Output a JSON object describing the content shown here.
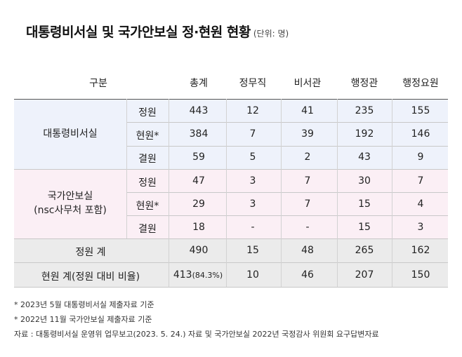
{
  "title": "대통령비서실 및 국가안보실 정·현원 현황",
  "unit": "(단위: 명)",
  "headers": [
    "구분",
    "총계",
    "정무직",
    "비서관",
    "행정관",
    "행정요원"
  ],
  "groups": [
    {
      "name": "대통령비서실",
      "name_line2": "",
      "rows": [
        {
          "label": "정원",
          "values": [
            "443",
            "12",
            "41",
            "235",
            "155"
          ]
        },
        {
          "label": "현원*",
          "values": [
            "384",
            "7",
            "39",
            "192",
            "146"
          ]
        },
        {
          "label": "결원",
          "values": [
            "59",
            "5",
            "2",
            "43",
            "9"
          ]
        }
      ]
    },
    {
      "name": "국가안보실",
      "name_line2": "(nsc사무처 포함)",
      "rows": [
        {
          "label": "정원",
          "values": [
            "47",
            "3",
            "7",
            "30",
            "7"
          ]
        },
        {
          "label": "현원*",
          "values": [
            "29",
            "3",
            "7",
            "15",
            "4"
          ]
        },
        {
          "label": "결원",
          "values": [
            "18",
            "-",
            "-",
            "15",
            "3"
          ]
        }
      ]
    }
  ],
  "totals": [
    {
      "label": "정원 계",
      "values": [
        "490",
        "15",
        "48",
        "265",
        "162"
      ],
      "pct": ""
    },
    {
      "label": "현원 계(정원 대비 비율)",
      "values": [
        "413",
        "10",
        "46",
        "207",
        "150"
      ],
      "pct": "(84.3%)"
    }
  ],
  "notes": [
    "* 2023년 5월 대통령비서실 제출자료 기준",
    "* 2022년 11월 국가안보실 제출자료 기준",
    "자료 : 대통령비서실 운영위 업무보고(2023. 5. 24.) 자료 및 국가안보실 2022년 국정감사 위원회 요구답변자료"
  ],
  "colors": {
    "blue_band": "#eef2fb",
    "pink_band": "#fbeff5",
    "gray_band": "#ebebeb"
  }
}
